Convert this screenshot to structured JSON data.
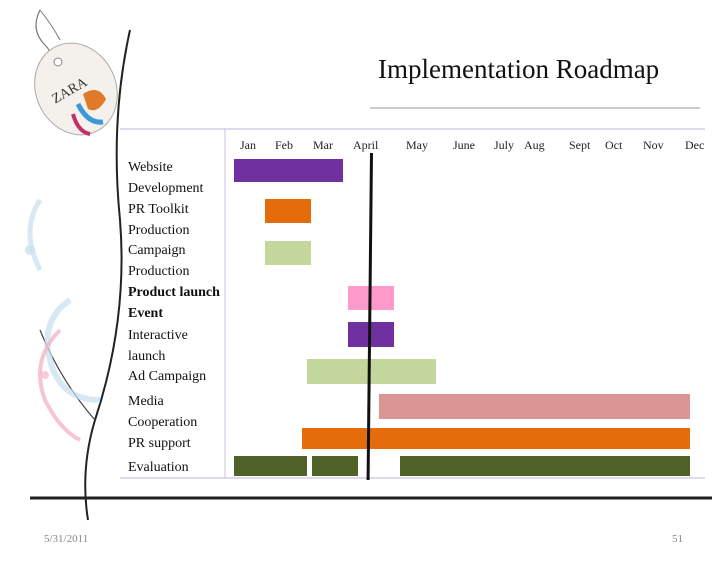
{
  "title": "Implementation Roadmap",
  "footer": {
    "date": "5/31/2011",
    "page": "51"
  },
  "logo": {
    "text": "ZARA"
  },
  "chart_data": {
    "type": "gantt",
    "months": [
      "Jan",
      "Feb",
      "Mar",
      "April",
      "May",
      "June",
      "July",
      "Aug",
      "Sept",
      "Oct",
      "Nov",
      "Dec"
    ],
    "today_marker_month": "April",
    "tasks": [
      {
        "name": "Website Development",
        "lines": [
          "Website",
          "Development"
        ],
        "bold": false,
        "bars": [
          {
            "start": "Jan",
            "end": "Mar",
            "color": "#7030a0"
          }
        ]
      },
      {
        "name": "PR Toolkit Production",
        "lines": [
          "PR  Toolkit",
          "Production"
        ],
        "bold": false,
        "bars": [
          {
            "start": "Feb",
            "end": "Feb",
            "color": "#e46c0a"
          }
        ]
      },
      {
        "name": "Campaign Production",
        "lines": [
          "Campaign",
          "Production"
        ],
        "bold": false,
        "bars": [
          {
            "start": "Feb",
            "end": "Feb",
            "color": "#c3d69b"
          }
        ]
      },
      {
        "name": "Product launch Event",
        "lines": [
          "Product launch",
          "Event"
        ],
        "bold": true,
        "bars": [
          {
            "start": "April",
            "end": "April",
            "color": "#ff99cc"
          }
        ]
      },
      {
        "name": "Interactive launch",
        "lines": [
          "Interactive",
          "launch"
        ],
        "bold": false,
        "bars": [
          {
            "start": "April",
            "end": "April",
            "color": "#7030a0"
          }
        ]
      },
      {
        "name": "Ad Campaign",
        "lines": [
          "Ad  Campaign"
        ],
        "bold": false,
        "bars": [
          {
            "start": "Mar",
            "end": "May",
            "color": "#c3d69b"
          }
        ]
      },
      {
        "name": "Media Cooperation",
        "lines": [
          "Media",
          "Cooperation"
        ],
        "bold": false,
        "bars": [
          {
            "start": "April",
            "end": "Dec",
            "color": "#d99694"
          }
        ]
      },
      {
        "name": "PR support",
        "lines": [
          "PR  support"
        ],
        "bold": false,
        "bars": [
          {
            "start": "Mar",
            "end": "Dec",
            "color": "#e46c0a"
          }
        ]
      },
      {
        "name": "Evaluation",
        "lines": [
          "Evaluation"
        ],
        "bold": false,
        "bars": [
          {
            "start": "Jan",
            "end": "Feb",
            "color": "#4f6228"
          },
          {
            "start": "Mar",
            "end": "Mar",
            "color": "#4f6228"
          },
          {
            "start": "May",
            "end": "Dec",
            "color": "#4f6228"
          }
        ]
      }
    ]
  }
}
